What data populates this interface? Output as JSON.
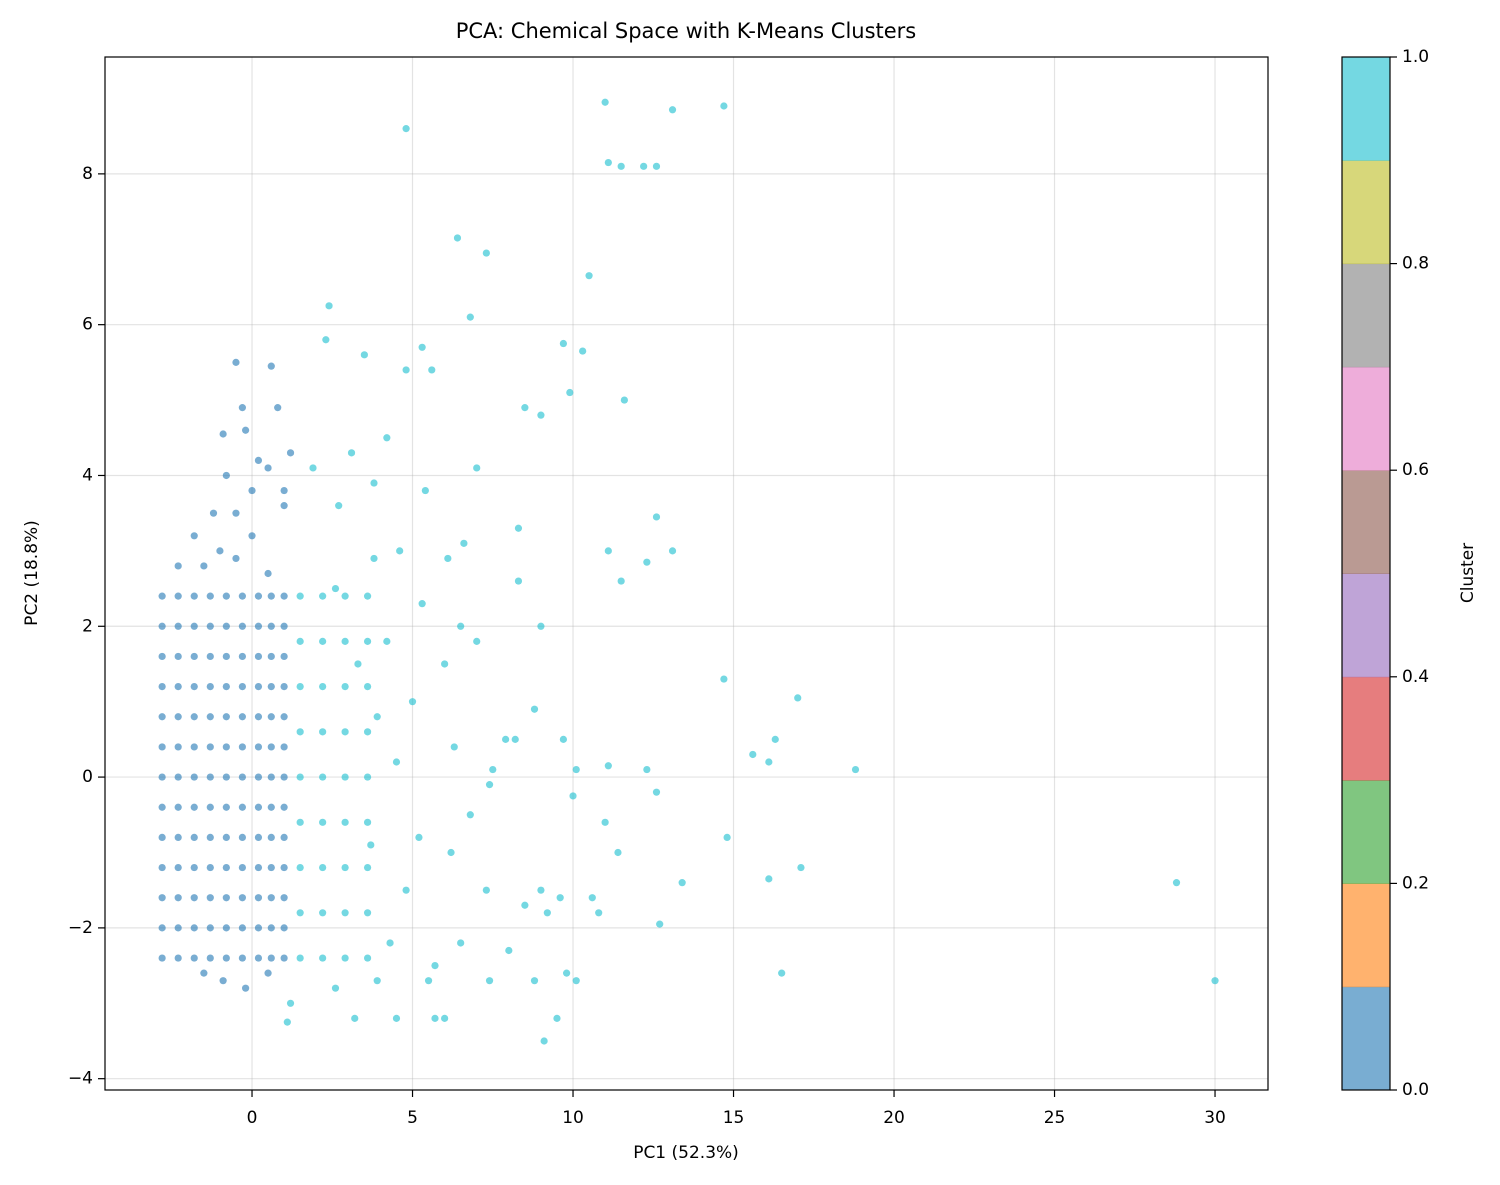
{
  "chart_data": {
    "type": "scatter",
    "title": "PCA: Chemical Space with K-Means Clusters",
    "x_label": "PC1 (52.3%)",
    "y_label": "PC2 (18.8%)",
    "xlim": [
      -4.58,
      31.65
    ],
    "ylim": [
      -4.15,
      9.55
    ],
    "xticks": [
      0,
      5,
      10,
      15,
      20,
      25,
      30
    ],
    "yticks": [
      {
        "value": -4,
        "label": "−4"
      },
      {
        "value": -2,
        "label": "−2"
      },
      0,
      2,
      4,
      6,
      8
    ],
    "grid": true,
    "marker_opacity": 0.6,
    "series": [
      {
        "color": "#1f77b4",
        "x": [
          -2.8,
          -2.3,
          -1.8,
          -1.3,
          -0.8,
          -0.3,
          0.2,
          0.6,
          1.0,
          -2.8,
          -2.3,
          -1.8,
          -1.3,
          -0.8,
          -0.3,
          0.2,
          0.6,
          1.0,
          -2.8,
          -2.3,
          -1.8,
          -1.3,
          -0.8,
          -0.3,
          0.2,
          0.6,
          1.0,
          -2.8,
          -2.3,
          -1.8,
          -1.3,
          -0.8,
          -0.3,
          0.2,
          0.6,
          1.0,
          -2.8,
          -2.3,
          -1.8,
          -1.3,
          -0.8,
          -0.3,
          0.2,
          0.6,
          1.0,
          -2.8,
          -2.3,
          -1.8,
          -1.3,
          -0.8,
          -0.3,
          0.2,
          0.6,
          1.0,
          -2.8,
          -2.3,
          -1.8,
          -1.3,
          -0.8,
          -0.3,
          0.2,
          0.6,
          1.0,
          -2.8,
          -2.3,
          -1.8,
          -1.3,
          -0.8,
          -0.3,
          0.2,
          0.6,
          1.0,
          -2.8,
          -2.3,
          -1.8,
          -1.3,
          -0.8,
          -0.3,
          0.2,
          0.6,
          1.0,
          -2.8,
          -2.3,
          -1.8,
          -1.3,
          -0.8,
          -0.3,
          0.2,
          0.6,
          1.0,
          -2.8,
          -2.3,
          -1.8,
          -1.3,
          -0.8,
          -0.3,
          0.2,
          0.6,
          1.0,
          -2.8,
          -2.3,
          -1.8,
          -1.3,
          -0.8,
          -0.3,
          0.2,
          0.6,
          1.0,
          -2.8,
          -2.3,
          -1.8,
          -1.3,
          -0.8,
          -0.3,
          0.2,
          0.6,
          1.0,
          -1.5,
          -1.0,
          -0.5,
          0.0,
          0.5,
          -1.2,
          -0.5,
          0.0,
          0.5,
          -0.8,
          0.2,
          -1.8,
          1.0,
          1.2,
          0.6,
          -0.5,
          -0.3,
          -0.2,
          -0.9,
          0.8,
          -2.3,
          1.0,
          -1.5,
          -0.2,
          0.5,
          -0.9
        ],
        "values": [
          -2.4,
          -2.4,
          -2.4,
          -2.4,
          -2.4,
          -2.4,
          -2.4,
          -2.4,
          -2.4,
          -2.0,
          -2.0,
          -2.0,
          -2.0,
          -2.0,
          -2.0,
          -2.0,
          -2.0,
          -2.0,
          -1.6,
          -1.6,
          -1.6,
          -1.6,
          -1.6,
          -1.6,
          -1.6,
          -1.6,
          -1.6,
          -1.2,
          -1.2,
          -1.2,
          -1.2,
          -1.2,
          -1.2,
          -1.2,
          -1.2,
          -1.2,
          -0.8,
          -0.8,
          -0.8,
          -0.8,
          -0.8,
          -0.8,
          -0.8,
          -0.8,
          -0.8,
          -0.4,
          -0.4,
          -0.4,
          -0.4,
          -0.4,
          -0.4,
          -0.4,
          -0.4,
          -0.4,
          0,
          0,
          0,
          0,
          0,
          0,
          0,
          0,
          0,
          0.4,
          0.4,
          0.4,
          0.4,
          0.4,
          0.4,
          0.4,
          0.4,
          0.4,
          0.8,
          0.8,
          0.8,
          0.8,
          0.8,
          0.8,
          0.8,
          0.8,
          0.8,
          1.2,
          1.2,
          1.2,
          1.2,
          1.2,
          1.2,
          1.2,
          1.2,
          1.2,
          1.6,
          1.6,
          1.6,
          1.6,
          1.6,
          1.6,
          1.6,
          1.6,
          1.6,
          2.0,
          2.0,
          2.0,
          2.0,
          2.0,
          2.0,
          2.0,
          2.0,
          2.0,
          2.4,
          2.4,
          2.4,
          2.4,
          2.4,
          2.4,
          2.4,
          2.4,
          2.4,
          2.8,
          3.0,
          2.9,
          3.2,
          2.7,
          3.5,
          3.5,
          3.8,
          4.1,
          4.0,
          4.2,
          3.2,
          3.6,
          4.3,
          5.45,
          5.5,
          4.9,
          4.6,
          4.55,
          4.9,
          2.8,
          3.8,
          -2.6,
          -2.8,
          -2.6,
          -2.7
        ]
      },
      {
        "color": "#17becf",
        "x": [
          1.5,
          2.2,
          2.9,
          3.6,
          1.5,
          2.2,
          2.9,
          3.6,
          1.5,
          2.2,
          2.9,
          3.6,
          1.5,
          2.2,
          2.9,
          3.6,
          1.5,
          2.2,
          2.9,
          3.6,
          1.5,
          2.2,
          2.9,
          3.6,
          1.5,
          2.2,
          2.9,
          3.6,
          1.5,
          2.2,
          2.9,
          3.6,
          1.5,
          2.2,
          2.9,
          3.6,
          4.3,
          4.8,
          5.2,
          4.5,
          5.0,
          4.2,
          5.3,
          4.6,
          3.8,
          4.2,
          3.5,
          4.8,
          2.3,
          2.4,
          5.3,
          5.6,
          3.1,
          2.7,
          1.9,
          6.5,
          6.0,
          7.0,
          6.3,
          7.5,
          6.8,
          6.2,
          7.3,
          6.5,
          5.7,
          6.0,
          7.4,
          8.0,
          8.5,
          8.8,
          9.0,
          8.2,
          8.8,
          9.7,
          9.2,
          9.8,
          9.1,
          9.5,
          8.3,
          8.3,
          9.0,
          8.5,
          9.0,
          9.9,
          9.7,
          10.3,
          10.5,
          7.3,
          6.4,
          6.8,
          4.8,
          11.0,
          11.1,
          11.5,
          12.2,
          12.6,
          13.1,
          14.7,
          11.1,
          12.6,
          13.1,
          11.5,
          12.3,
          11.6,
          14.7,
          15.6,
          16.1,
          16.3,
          17.0,
          18.8,
          14.8,
          17.1,
          16.1,
          16.5,
          13.4,
          11.4,
          12.7,
          12.6,
          12.3,
          11.1,
          10.1,
          10.0,
          11.0,
          10.8,
          10.6,
          10.1,
          9.6,
          28.8,
          30.0,
          1.2,
          1.1,
          3.2,
          4.5,
          5.7,
          3.8,
          2.6,
          3.3,
          3.9,
          3.7,
          2.6,
          3.9,
          5.5,
          7.9,
          7.4,
          6.1,
          6.6,
          5.4,
          7.0
        ],
        "values": [
          -2.4,
          -2.4,
          -2.4,
          -2.4,
          -1.8,
          -1.8,
          -1.8,
          -1.8,
          -1.2,
          -1.2,
          -1.2,
          -1.2,
          -0.6,
          -0.6,
          -0.6,
          -0.6,
          0,
          0,
          0,
          0,
          0.6,
          0.6,
          0.6,
          0.6,
          1.2,
          1.2,
          1.2,
          1.2,
          1.8,
          1.8,
          1.8,
          1.8,
          2.4,
          2.4,
          2.4,
          2.4,
          -2.2,
          -1.5,
          -0.8,
          0.2,
          1.0,
          1.8,
          2.3,
          3.0,
          3.9,
          4.5,
          5.6,
          5.4,
          5.8,
          6.25,
          5.7,
          5.4,
          4.3,
          3.6,
          4.1,
          2.0,
          1.5,
          1.8,
          0.4,
          0.1,
          -0.5,
          -1.0,
          -1.5,
          -2.2,
          -2.5,
          -3.2,
          -2.7,
          -2.3,
          -1.7,
          -2.7,
          -1.5,
          0.5,
          0.9,
          0.5,
          -1.8,
          -2.6,
          -3.5,
          -3.2,
          2.6,
          3.3,
          2.0,
          4.9,
          4.8,
          5.1,
          5.75,
          5.65,
          6.65,
          6.95,
          7.15,
          6.1,
          8.6,
          8.95,
          8.15,
          8.1,
          8.1,
          8.1,
          8.85,
          8.9,
          3.0,
          3.45,
          3.0,
          2.6,
          2.85,
          5.0,
          1.3,
          0.3,
          0.2,
          0.5,
          1.05,
          0.1,
          -0.8,
          -1.2,
          -1.35,
          -2.6,
          -1.4,
          -1.0,
          -1.95,
          -0.2,
          0.1,
          0.15,
          0.1,
          -0.25,
          -0.6,
          -1.8,
          -1.6,
          -2.7,
          -1.6,
          -1.4,
          -2.7,
          -3.0,
          -3.25,
          -3.2,
          -3.2,
          -3.2,
          2.9,
          2.5,
          1.5,
          0.8,
          -0.9,
          -2.8,
          -2.7,
          -2.7,
          0.5,
          -0.1,
          2.9,
          3.1,
          3.8,
          4.1
        ]
      }
    ],
    "colorbar": {
      "label": "Cluster",
      "lim": [
        0,
        1
      ],
      "ticks": [
        {
          "value": 0,
          "label": "0.0"
        },
        {
          "value": 0.2,
          "label": "0.2"
        },
        {
          "value": 0.4,
          "label": "0.4"
        },
        {
          "value": 0.6,
          "label": "0.6"
        },
        {
          "value": 0.8,
          "label": "0.8"
        },
        {
          "value": 1,
          "label": "1.0"
        }
      ],
      "colors": [
        "#1f77b4",
        "#ff7f0e",
        "#2ca02c",
        "#d62728",
        "#9467bd",
        "#8c564b",
        "#e377c2",
        "#7f7f7f",
        "#bcbd22",
        "#17becf"
      ],
      "opacity": 0.6
    }
  }
}
